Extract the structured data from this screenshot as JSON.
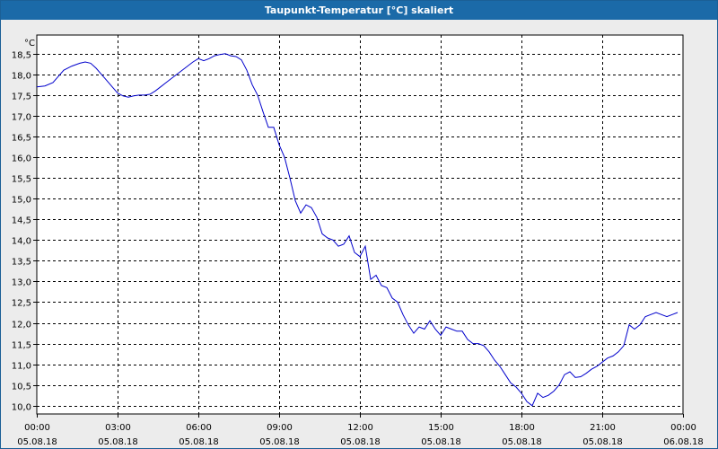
{
  "window": {
    "title": "Taupunkt-Temperatur [°C] skaliert"
  },
  "chart_data": {
    "type": "line",
    "title": "Taupunkt-Temperatur [°C] skaliert",
    "ylabel": "°C",
    "xlabel": "",
    "ylim": [
      9.8,
      18.95
    ],
    "xlim": [
      0,
      24
    ],
    "grid": true,
    "y_ticks": [
      "10,0",
      "10,5",
      "11,0",
      "11,5",
      "12,0",
      "12,5",
      "13,0",
      "13,5",
      "14,0",
      "14,5",
      "15,0",
      "15,5",
      "16,0",
      "16,5",
      "17,0",
      "17,5",
      "18,0",
      "18,5"
    ],
    "y_tick_values": [
      10.0,
      10.5,
      11.0,
      11.5,
      12.0,
      12.5,
      13.0,
      13.5,
      14.0,
      14.5,
      15.0,
      15.5,
      16.0,
      16.5,
      17.0,
      17.5,
      18.0,
      18.5
    ],
    "x_tick_values": [
      0,
      3,
      6,
      9,
      12,
      15,
      18,
      21,
      24
    ],
    "x_ticks": [
      {
        "time": "00:00",
        "date": "05.08.18"
      },
      {
        "time": "03:00",
        "date": "05.08.18"
      },
      {
        "time": "06:00",
        "date": "05.08.18"
      },
      {
        "time": "09:00",
        "date": "05.08.18"
      },
      {
        "time": "12:00",
        "date": "05.08.18"
      },
      {
        "time": "15:00",
        "date": "05.08.18"
      },
      {
        "time": "18:00",
        "date": "05.08.18"
      },
      {
        "time": "21:00",
        "date": "05.08.18"
      },
      {
        "time": "00:00",
        "date": "06.08.18"
      }
    ],
    "series": [
      {
        "color": "#0000cc",
        "x": [
          0.0,
          0.3,
          0.6,
          0.8,
          1.0,
          1.3,
          1.6,
          1.8,
          2.0,
          2.2,
          2.4,
          2.6,
          2.8,
          3.0,
          3.2,
          3.4,
          3.6,
          3.8,
          4.0,
          4.2,
          4.4,
          4.6,
          4.8,
          5.0,
          5.3,
          5.6,
          5.8,
          6.0,
          6.2,
          6.4,
          6.6,
          6.8,
          7.0,
          7.2,
          7.4,
          7.6,
          7.8,
          8.0,
          8.2,
          8.4,
          8.6,
          8.8,
          9.0,
          9.2,
          9.4,
          9.6,
          9.8,
          10.0,
          10.2,
          10.4,
          10.6,
          10.8,
          11.0,
          11.2,
          11.4,
          11.6,
          11.8,
          12.0,
          12.2,
          12.4,
          12.6,
          12.8,
          13.0,
          13.2,
          13.4,
          13.6,
          13.8,
          14.0,
          14.2,
          14.4,
          14.6,
          14.8,
          15.0,
          15.2,
          15.4,
          15.6,
          15.8,
          16.0,
          16.2,
          16.4,
          16.6,
          16.8,
          17.0,
          17.2,
          17.4,
          17.6,
          17.8,
          18.0,
          18.2,
          18.4,
          18.6,
          18.8,
          19.0,
          19.2,
          19.4,
          19.6,
          19.8,
          20.0,
          20.2,
          20.4,
          20.6,
          20.8,
          21.0,
          21.2,
          21.4,
          21.6,
          21.8,
          22.0,
          22.2,
          22.4,
          22.6,
          22.8,
          23.0,
          23.2,
          23.4,
          23.6,
          23.8
        ],
        "y": [
          17.7,
          17.72,
          17.8,
          17.95,
          18.1,
          18.2,
          18.27,
          18.3,
          18.27,
          18.15,
          18.0,
          17.85,
          17.7,
          17.55,
          17.48,
          17.45,
          17.48,
          17.5,
          17.5,
          17.52,
          17.6,
          17.7,
          17.8,
          17.9,
          18.05,
          18.2,
          18.3,
          18.38,
          18.33,
          18.38,
          18.45,
          18.48,
          18.5,
          18.45,
          18.43,
          18.35,
          18.1,
          17.75,
          17.5,
          17.1,
          16.72,
          16.72,
          16.3,
          16.0,
          15.5,
          14.95,
          14.65,
          14.85,
          14.78,
          14.55,
          14.15,
          14.05,
          14.0,
          13.85,
          13.9,
          14.1,
          13.7,
          13.6,
          13.85,
          13.05,
          13.15,
          12.9,
          12.85,
          12.6,
          12.5,
          12.2,
          11.95,
          11.75,
          11.9,
          11.85,
          12.05,
          11.85,
          11.7,
          11.9,
          11.85,
          11.8,
          11.8,
          11.6,
          11.5,
          11.5,
          11.45,
          11.3,
          11.1,
          10.95,
          10.75,
          10.55,
          10.45,
          10.3,
          10.1,
          10.0,
          10.3,
          10.2,
          10.25,
          10.35,
          10.5,
          10.75,
          10.82,
          10.68,
          10.7,
          10.78,
          10.88,
          10.95,
          11.05,
          11.15,
          11.2,
          11.3,
          11.45,
          11.95,
          11.85,
          11.95,
          12.15,
          12.2,
          12.25,
          12.2,
          12.15,
          12.2,
          12.25
        ]
      }
    ]
  }
}
